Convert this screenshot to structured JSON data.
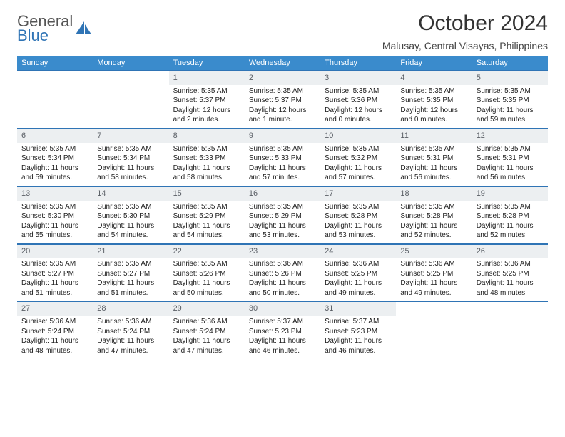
{
  "brand": {
    "word1": "General",
    "word2": "Blue"
  },
  "title": "October 2024",
  "location": "Malusay, Central Visayas, Philippines",
  "colors": {
    "header_bg": "#3a8bcc",
    "header_fg": "#ffffff",
    "rule": "#2f74b5",
    "daynum_bg": "#eceff1",
    "daynum_fg": "#5a5f66",
    "text": "#222222",
    "brand_gray": "#555555",
    "brand_blue": "#2f74b5"
  },
  "day_headers": [
    "Sunday",
    "Monday",
    "Tuesday",
    "Wednesday",
    "Thursday",
    "Friday",
    "Saturday"
  ],
  "weeks": [
    [
      {
        "blank": true
      },
      {
        "blank": true
      },
      {
        "n": "1",
        "sr": "Sunrise: 5:35 AM",
        "ss": "Sunset: 5:37 PM",
        "dl": "Daylight: 12 hours and 2 minutes."
      },
      {
        "n": "2",
        "sr": "Sunrise: 5:35 AM",
        "ss": "Sunset: 5:37 PM",
        "dl": "Daylight: 12 hours and 1 minute."
      },
      {
        "n": "3",
        "sr": "Sunrise: 5:35 AM",
        "ss": "Sunset: 5:36 PM",
        "dl": "Daylight: 12 hours and 0 minutes."
      },
      {
        "n": "4",
        "sr": "Sunrise: 5:35 AM",
        "ss": "Sunset: 5:35 PM",
        "dl": "Daylight: 12 hours and 0 minutes."
      },
      {
        "n": "5",
        "sr": "Sunrise: 5:35 AM",
        "ss": "Sunset: 5:35 PM",
        "dl": "Daylight: 11 hours and 59 minutes."
      }
    ],
    [
      {
        "n": "6",
        "sr": "Sunrise: 5:35 AM",
        "ss": "Sunset: 5:34 PM",
        "dl": "Daylight: 11 hours and 59 minutes."
      },
      {
        "n": "7",
        "sr": "Sunrise: 5:35 AM",
        "ss": "Sunset: 5:34 PM",
        "dl": "Daylight: 11 hours and 58 minutes."
      },
      {
        "n": "8",
        "sr": "Sunrise: 5:35 AM",
        "ss": "Sunset: 5:33 PM",
        "dl": "Daylight: 11 hours and 58 minutes."
      },
      {
        "n": "9",
        "sr": "Sunrise: 5:35 AM",
        "ss": "Sunset: 5:33 PM",
        "dl": "Daylight: 11 hours and 57 minutes."
      },
      {
        "n": "10",
        "sr": "Sunrise: 5:35 AM",
        "ss": "Sunset: 5:32 PM",
        "dl": "Daylight: 11 hours and 57 minutes."
      },
      {
        "n": "11",
        "sr": "Sunrise: 5:35 AM",
        "ss": "Sunset: 5:31 PM",
        "dl": "Daylight: 11 hours and 56 minutes."
      },
      {
        "n": "12",
        "sr": "Sunrise: 5:35 AM",
        "ss": "Sunset: 5:31 PM",
        "dl": "Daylight: 11 hours and 56 minutes."
      }
    ],
    [
      {
        "n": "13",
        "sr": "Sunrise: 5:35 AM",
        "ss": "Sunset: 5:30 PM",
        "dl": "Daylight: 11 hours and 55 minutes."
      },
      {
        "n": "14",
        "sr": "Sunrise: 5:35 AM",
        "ss": "Sunset: 5:30 PM",
        "dl": "Daylight: 11 hours and 54 minutes."
      },
      {
        "n": "15",
        "sr": "Sunrise: 5:35 AM",
        "ss": "Sunset: 5:29 PM",
        "dl": "Daylight: 11 hours and 54 minutes."
      },
      {
        "n": "16",
        "sr": "Sunrise: 5:35 AM",
        "ss": "Sunset: 5:29 PM",
        "dl": "Daylight: 11 hours and 53 minutes."
      },
      {
        "n": "17",
        "sr": "Sunrise: 5:35 AM",
        "ss": "Sunset: 5:28 PM",
        "dl": "Daylight: 11 hours and 53 minutes."
      },
      {
        "n": "18",
        "sr": "Sunrise: 5:35 AM",
        "ss": "Sunset: 5:28 PM",
        "dl": "Daylight: 11 hours and 52 minutes."
      },
      {
        "n": "19",
        "sr": "Sunrise: 5:35 AM",
        "ss": "Sunset: 5:28 PM",
        "dl": "Daylight: 11 hours and 52 minutes."
      }
    ],
    [
      {
        "n": "20",
        "sr": "Sunrise: 5:35 AM",
        "ss": "Sunset: 5:27 PM",
        "dl": "Daylight: 11 hours and 51 minutes."
      },
      {
        "n": "21",
        "sr": "Sunrise: 5:35 AM",
        "ss": "Sunset: 5:27 PM",
        "dl": "Daylight: 11 hours and 51 minutes."
      },
      {
        "n": "22",
        "sr": "Sunrise: 5:35 AM",
        "ss": "Sunset: 5:26 PM",
        "dl": "Daylight: 11 hours and 50 minutes."
      },
      {
        "n": "23",
        "sr": "Sunrise: 5:36 AM",
        "ss": "Sunset: 5:26 PM",
        "dl": "Daylight: 11 hours and 50 minutes."
      },
      {
        "n": "24",
        "sr": "Sunrise: 5:36 AM",
        "ss": "Sunset: 5:25 PM",
        "dl": "Daylight: 11 hours and 49 minutes."
      },
      {
        "n": "25",
        "sr": "Sunrise: 5:36 AM",
        "ss": "Sunset: 5:25 PM",
        "dl": "Daylight: 11 hours and 49 minutes."
      },
      {
        "n": "26",
        "sr": "Sunrise: 5:36 AM",
        "ss": "Sunset: 5:25 PM",
        "dl": "Daylight: 11 hours and 48 minutes."
      }
    ],
    [
      {
        "n": "27",
        "sr": "Sunrise: 5:36 AM",
        "ss": "Sunset: 5:24 PM",
        "dl": "Daylight: 11 hours and 48 minutes."
      },
      {
        "n": "28",
        "sr": "Sunrise: 5:36 AM",
        "ss": "Sunset: 5:24 PM",
        "dl": "Daylight: 11 hours and 47 minutes."
      },
      {
        "n": "29",
        "sr": "Sunrise: 5:36 AM",
        "ss": "Sunset: 5:24 PM",
        "dl": "Daylight: 11 hours and 47 minutes."
      },
      {
        "n": "30",
        "sr": "Sunrise: 5:37 AM",
        "ss": "Sunset: 5:23 PM",
        "dl": "Daylight: 11 hours and 46 minutes."
      },
      {
        "n": "31",
        "sr": "Sunrise: 5:37 AM",
        "ss": "Sunset: 5:23 PM",
        "dl": "Daylight: 11 hours and 46 minutes."
      },
      {
        "blank": true
      },
      {
        "blank": true
      }
    ]
  ]
}
